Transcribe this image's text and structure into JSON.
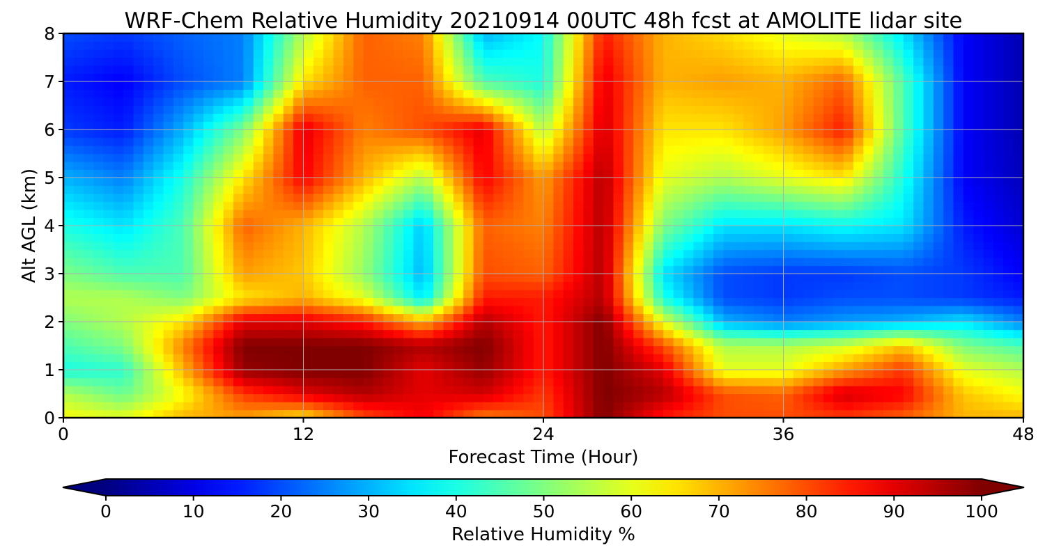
{
  "chart_data": {
    "type": "heatmap",
    "title": "WRF-Chem Relative Humidity 20210914 00UTC 48h fcst at AMOLITE lidar site",
    "xlabel": "Forecast Time (Hour)",
    "ylabel": "Alt AGL (km)",
    "xlim": [
      0,
      48
    ],
    "ylim": [
      0,
      8
    ],
    "x_ticks": [
      "0",
      "12",
      "24",
      "36",
      "48"
    ],
    "y_ticks": [
      "0",
      "1",
      "2",
      "3",
      "4",
      "5",
      "6",
      "7",
      "8"
    ],
    "grid": true,
    "colormap": "jet",
    "colorbar": {
      "label": "Relative Humidity %",
      "range": [
        0,
        100
      ],
      "extend": "both",
      "ticks": [
        "0",
        "10",
        "20",
        "30",
        "40",
        "50",
        "60",
        "70",
        "80",
        "90",
        "100"
      ]
    },
    "x_hours": [
      0,
      3,
      6,
      9,
      12,
      15,
      18,
      21,
      24,
      27,
      30,
      33,
      36,
      39,
      42,
      45,
      48
    ],
    "z_km": [
      0,
      0.5,
      1,
      1.5,
      2,
      2.5,
      3,
      4,
      5,
      6,
      7,
      8
    ],
    "rh_percent": [
      [
        62,
        60,
        70,
        72,
        65,
        80,
        88,
        75,
        80,
        100,
        85,
        80,
        80,
        82,
        78,
        70,
        70
      ],
      [
        55,
        48,
        62,
        82,
        90,
        95,
        90,
        92,
        82,
        100,
        95,
        80,
        78,
        92,
        88,
        68,
        62
      ],
      [
        40,
        42,
        70,
        98,
        100,
        100,
        90,
        98,
        85,
        100,
        90,
        60,
        60,
        72,
        82,
        60,
        55
      ],
      [
        45,
        50,
        75,
        100,
        100,
        100,
        95,
        100,
        85,
        100,
        80,
        55,
        55,
        58,
        68,
        50,
        45
      ],
      [
        50,
        55,
        65,
        90,
        90,
        85,
        70,
        95,
        85,
        100,
        60,
        30,
        25,
        28,
        30,
        35,
        25
      ],
      [
        55,
        55,
        50,
        65,
        70,
        60,
        35,
        85,
        85,
        95,
        40,
        20,
        18,
        20,
        20,
        18,
        15
      ],
      [
        50,
        45,
        45,
        72,
        68,
        52,
        30,
        80,
        78,
        95,
        35,
        20,
        18,
        18,
        20,
        18,
        12
      ],
      [
        40,
        35,
        45,
        78,
        70,
        55,
        32,
        78,
        75,
        95,
        50,
        35,
        35,
        38,
        35,
        15,
        8
      ],
      [
        30,
        25,
        40,
        65,
        88,
        70,
        55,
        88,
        72,
        95,
        60,
        55,
        60,
        65,
        40,
        12,
        6
      ],
      [
        18,
        15,
        30,
        50,
        90,
        75,
        80,
        90,
        55,
        92,
        65,
        65,
        72,
        85,
        45,
        12,
        5
      ],
      [
        15,
        12,
        20,
        25,
        65,
        78,
        78,
        45,
        40,
        90,
        70,
        72,
        70,
        78,
        45,
        12,
        5
      ],
      [
        20,
        18,
        22,
        25,
        55,
        78,
        75,
        30,
        38,
        85,
        70,
        66,
        60,
        55,
        35,
        12,
        5
      ]
    ]
  }
}
